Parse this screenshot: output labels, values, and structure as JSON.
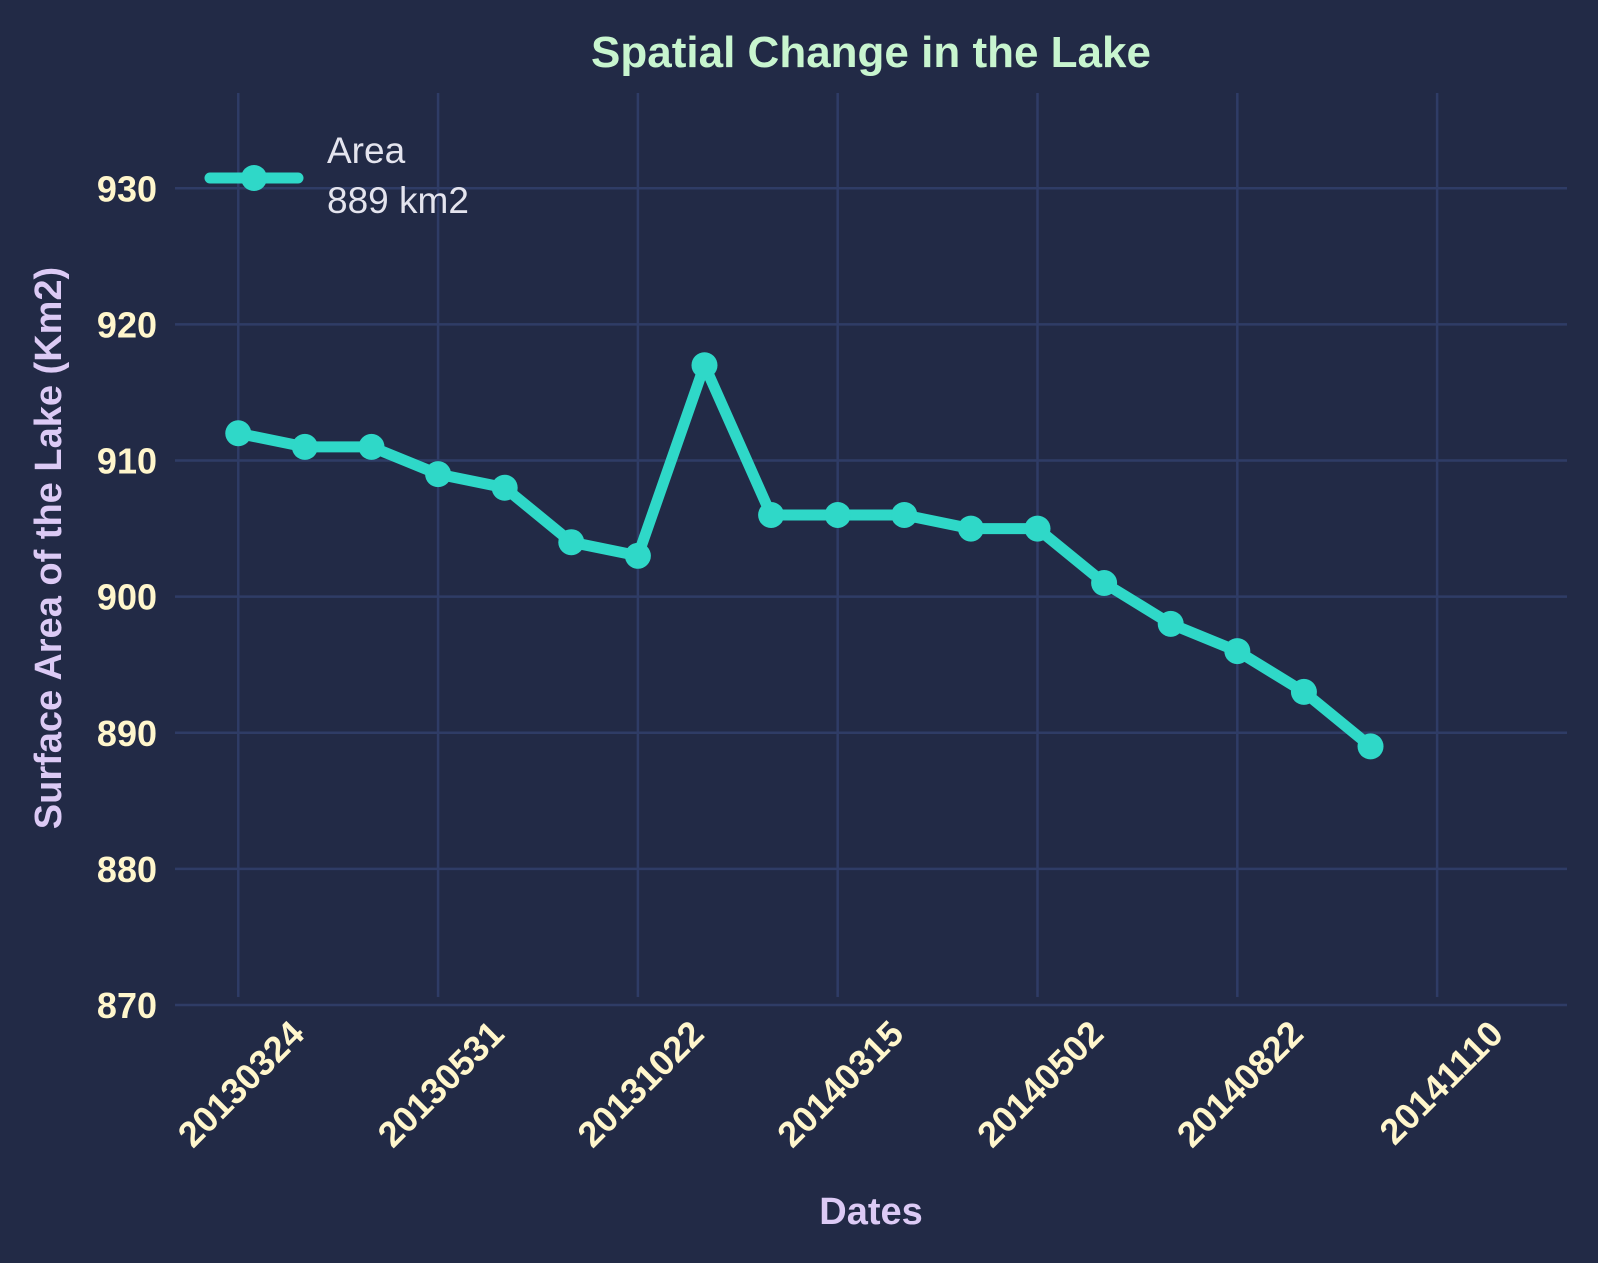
{
  "colors": {
    "background": "#222a46",
    "grid": "#2f3c66",
    "line": "#2fd8c8",
    "title": "#c8f5cf",
    "axis_label": "#dccaf5",
    "tick_label": "#fff6cc",
    "legend_text": "#e4e4ee"
  },
  "chart_data": {
    "type": "line",
    "title": "Spatial Change in the Lake",
    "xlabel": "Dates",
    "ylabel": "Surface Area of the Lake (Km2)",
    "ylim": [
      870,
      937
    ],
    "yticks": [
      870,
      880,
      890,
      900,
      910,
      920,
      930
    ],
    "xtick_labels": [
      "20130324",
      "20130531",
      "20131022",
      "20140315",
      "20140502",
      "20140822",
      "20141110"
    ],
    "xtick_positions": [
      0,
      3,
      6,
      9,
      12,
      15,
      18
    ],
    "xlim": [
      -0.95,
      19.95
    ],
    "grid": true,
    "legend_position": "top-left",
    "legend": {
      "series_label": "Area",
      "note": "889 km2"
    },
    "series": [
      {
        "name": "Area",
        "x": [
          0,
          1,
          2,
          3,
          4,
          5,
          6,
          7,
          8,
          9,
          10,
          11,
          12,
          13,
          14,
          15,
          16,
          17
        ],
        "values": [
          912,
          911,
          911,
          909,
          908,
          904,
          903,
          917,
          906,
          906,
          906,
          905,
          905,
          901,
          898,
          896,
          893,
          889
        ]
      }
    ]
  }
}
